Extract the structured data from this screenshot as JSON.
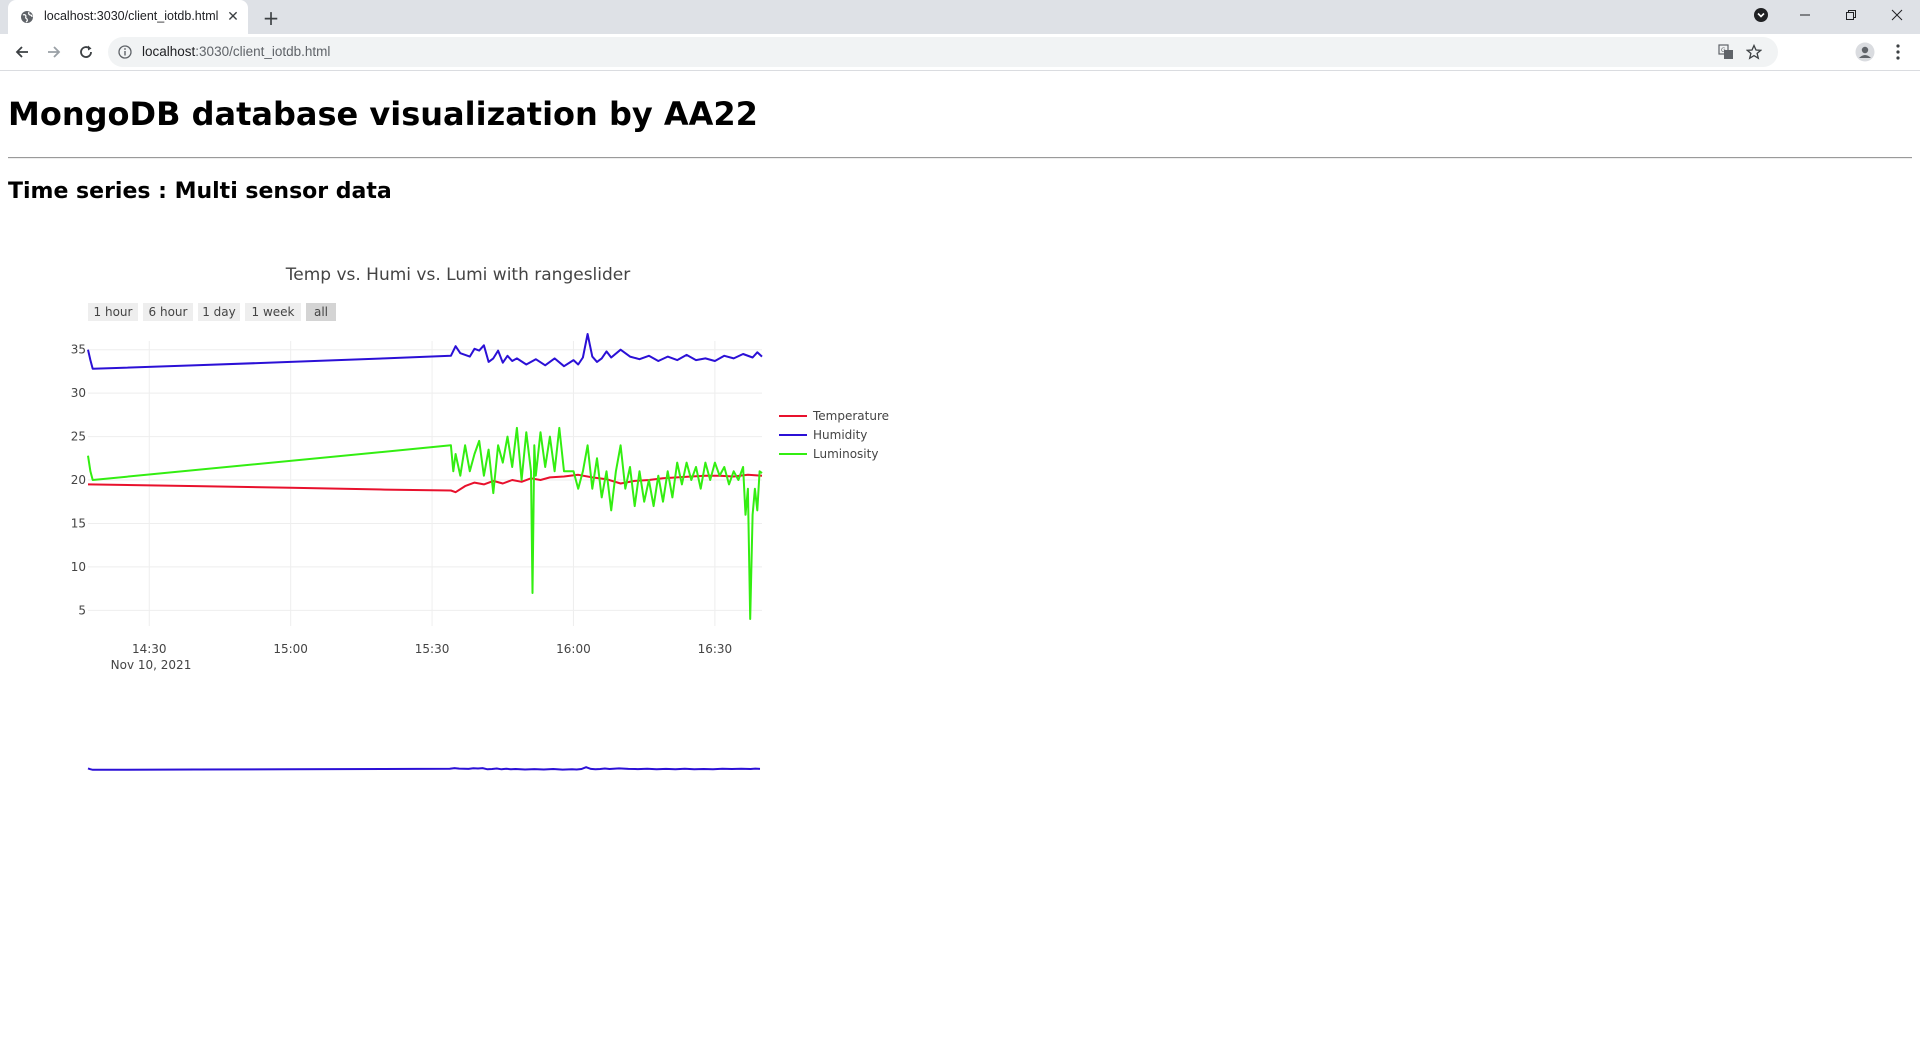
{
  "browser": {
    "tab_title": "localhost:3030/client_iotdb.html",
    "url_host": "localhost",
    "url_rest": ":3030/client_iotdb.html"
  },
  "page": {
    "heading": "MongoDB database visualization by AA22",
    "subheading": "Time series : Multi sensor data"
  },
  "chart_data": {
    "type": "line",
    "title": "Temp vs. Humi vs. Lumi with rangeslider",
    "x_ticks": [
      "14:30",
      "15:00",
      "15:30",
      "16:00",
      "16:30"
    ],
    "x_tick_minutes": [
      870,
      900,
      930,
      960,
      990
    ],
    "x_date_label": "Nov 10, 2021",
    "x_range": [
      "2021-11-10 14:17",
      "2021-11-10 16:40"
    ],
    "y_ticks": [
      5,
      10,
      15,
      20,
      25,
      30,
      35
    ],
    "y_range": [
      3.2,
      36.0
    ],
    "range_selector": [
      "1 hour",
      "6 hour",
      "1 day",
      "1 week",
      "all"
    ],
    "range_selector_active": "all",
    "legend": "top-right",
    "grid": true,
    "rangeslider": true,
    "series": [
      {
        "name": "Temperature",
        "color": "#e8112d",
        "x": [
          "14:17",
          "14:40",
          "15:00",
          "15:20",
          "15:34",
          "15:35",
          "15:37",
          "15:39",
          "15:41",
          "15:43",
          "15:45",
          "15:47",
          "15:49",
          "15:51",
          "15:53",
          "15:55",
          "15:58",
          "16:01",
          "16:04",
          "16:07",
          "16:10",
          "16:13",
          "16:16",
          "16:19",
          "16:22",
          "16:25",
          "16:28",
          "16:31",
          "16:34",
          "16:37",
          "16:40"
        ],
        "y": [
          19.5,
          19.3,
          19.1,
          18.9,
          18.8,
          18.6,
          19.3,
          19.7,
          19.5,
          19.9,
          19.6,
          20.0,
          19.8,
          20.2,
          20.0,
          20.3,
          20.4,
          20.6,
          20.3,
          20.1,
          19.6,
          19.9,
          20.0,
          20.2,
          20.3,
          20.4,
          20.5,
          20.5,
          20.4,
          20.6,
          20.5
        ]
      },
      {
        "name": "Humidity",
        "color": "#2b10d6",
        "x": [
          "14:17",
          "14:17.5",
          "14:18",
          "14:40",
          "15:00",
          "15:20",
          "15:34",
          "15:35",
          "15:36",
          "15:38",
          "15:39",
          "15:40",
          "15:41",
          "15:42",
          "15:43",
          "15:44",
          "15:45",
          "15:46",
          "15:47",
          "15:48",
          "15:50",
          "15:52",
          "15:54",
          "15:56",
          "15:58",
          "16:00",
          "16:01",
          "16:02",
          "16:03",
          "16:04",
          "16:05",
          "16:06",
          "16:07",
          "16:08",
          "16:10",
          "16:12",
          "16:14",
          "16:16",
          "16:18",
          "16:20",
          "16:22",
          "16:24",
          "16:26",
          "16:28",
          "16:30",
          "16:32",
          "16:34",
          "16:36",
          "16:38",
          "16:39",
          "16:40"
        ],
        "y": [
          35.0,
          33.8,
          32.8,
          33.2,
          33.6,
          34.0,
          34.3,
          35.4,
          34.6,
          34.2,
          35.1,
          34.9,
          35.5,
          33.6,
          34.0,
          34.9,
          33.5,
          34.3,
          33.7,
          34.0,
          33.3,
          33.9,
          33.2,
          34.0,
          33.1,
          33.8,
          33.3,
          34.1,
          36.8,
          34.2,
          33.6,
          34.0,
          34.8,
          34.1,
          35.0,
          34.2,
          33.9,
          34.3,
          33.7,
          34.2,
          33.8,
          34.4,
          33.8,
          34.0,
          33.7,
          34.3,
          34.0,
          34.5,
          34.1,
          34.7,
          34.2
        ]
      },
      {
        "name": "Luminosity",
        "color": "#33ee11",
        "x": [
          "14:17",
          "14:17.5",
          "14:18",
          "15:34",
          "15:34.5",
          "15:35",
          "15:36",
          "15:37",
          "15:38",
          "15:39",
          "15:40",
          "15:41",
          "15:42",
          "15:43",
          "15:44",
          "15:45",
          "15:46",
          "15:47",
          "15:48",
          "15:49",
          "15:50",
          "15:51",
          "15:51.3",
          "15:51.7",
          "15:52",
          "15:53",
          "15:54",
          "15:55",
          "15:56",
          "15:57",
          "15:58",
          "15:59",
          "16:00",
          "16:01",
          "16:02",
          "16:03",
          "16:04",
          "16:05",
          "16:06",
          "16:07",
          "16:08",
          "16:09",
          "16:10",
          "16:11",
          "16:12",
          "16:13",
          "16:14",
          "16:15",
          "16:16",
          "16:17",
          "16:18",
          "16:19",
          "16:20",
          "16:21",
          "16:22",
          "16:23",
          "16:24",
          "16:25",
          "16:26",
          "16:27",
          "16:28",
          "16:29",
          "16:30",
          "16:31",
          "16:32",
          "16:33",
          "16:34",
          "16:35",
          "16:36",
          "16:36.5",
          "16:37",
          "16:37.5",
          "16:38",
          "16:38.5",
          "16:39",
          "16:39.5",
          "16:40"
        ],
        "y": [
          22.8,
          21.0,
          20.0,
          24.0,
          21.0,
          23.0,
          20.5,
          24.0,
          21.0,
          23.0,
          24.5,
          20.5,
          23.5,
          18.5,
          24.0,
          22.0,
          25.0,
          21.5,
          26.0,
          20.0,
          25.5,
          21.0,
          7.0,
          24.0,
          20.5,
          25.5,
          21.5,
          25.0,
          21.0,
          26.0,
          21.0,
          21.0,
          21.0,
          19.0,
          21.0,
          24.0,
          19.0,
          22.5,
          18.0,
          21.0,
          16.5,
          21.0,
          24.0,
          19.0,
          21.5,
          17.0,
          21.0,
          17.5,
          20.0,
          17.0,
          20.5,
          17.5,
          21.0,
          18.0,
          22.0,
          19.5,
          22.0,
          20.0,
          21.5,
          19.0,
          22.0,
          20.0,
          22.0,
          20.5,
          21.5,
          19.5,
          21.0,
          20.0,
          21.5,
          16.0,
          19.0,
          4.0,
          16.0,
          19.0,
          16.5,
          21.0,
          20.8
        ]
      }
    ]
  }
}
